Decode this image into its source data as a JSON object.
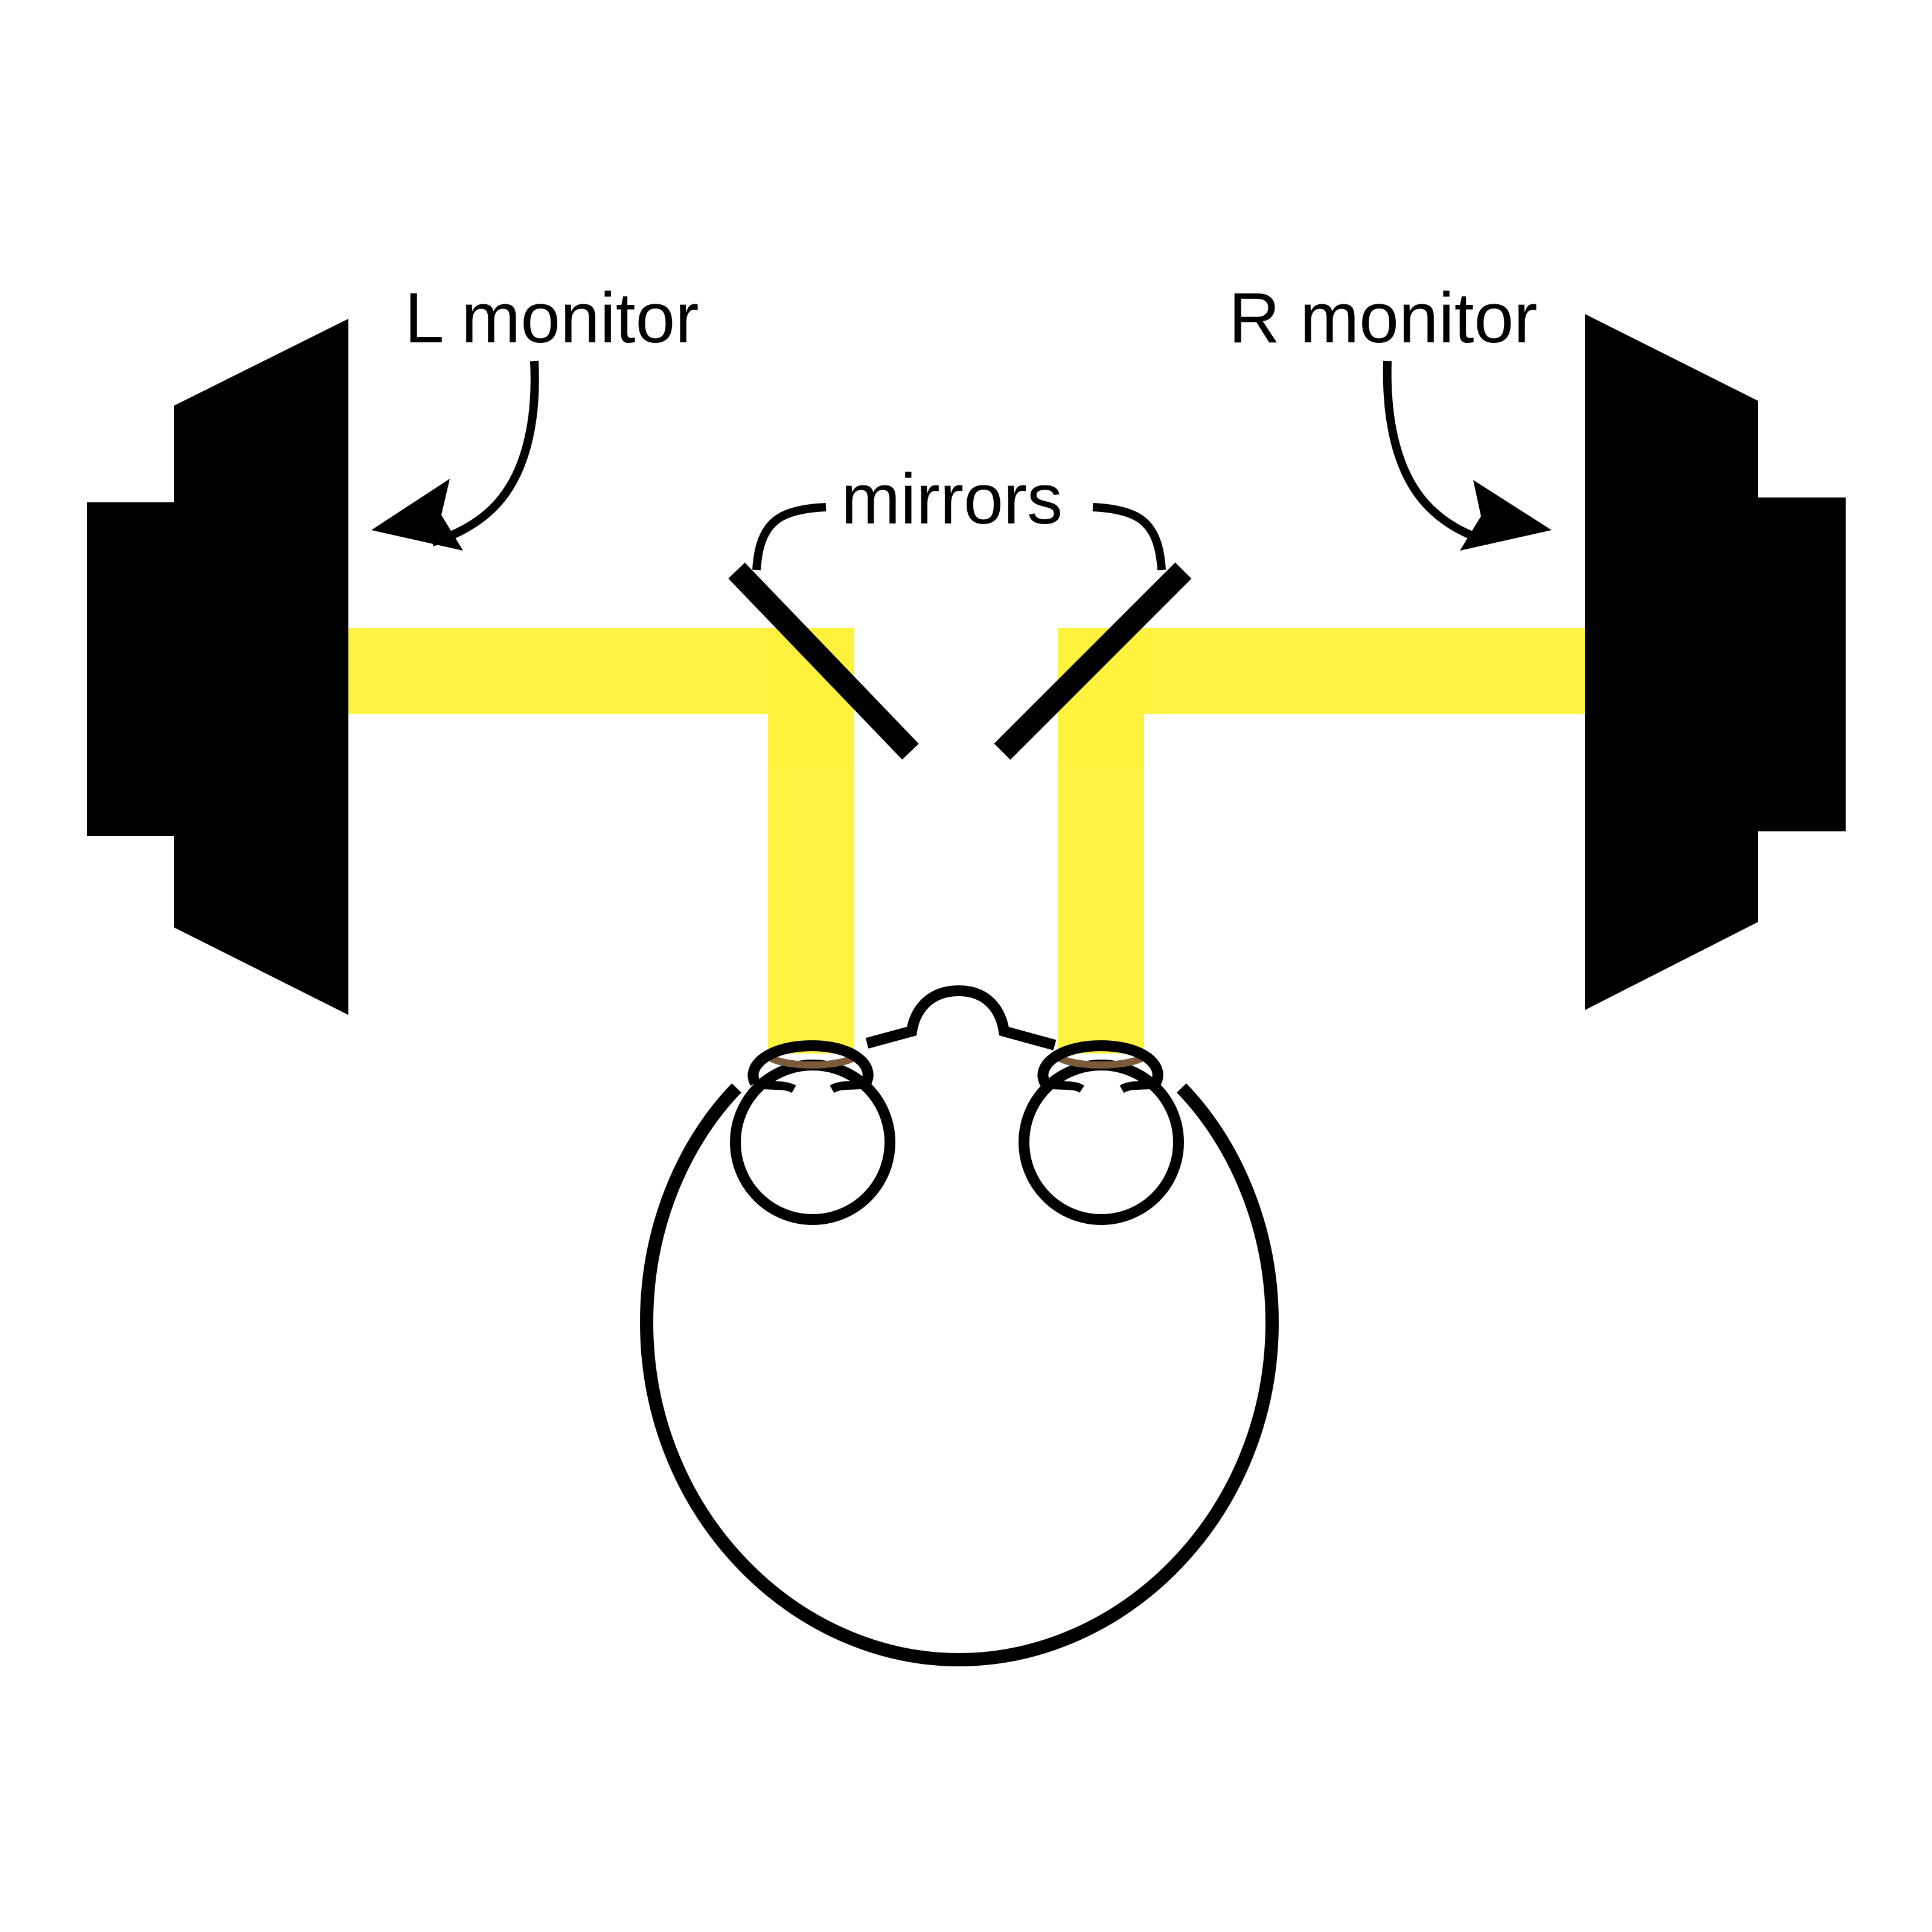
{
  "labels": {
    "left_monitor": "L monitor",
    "right_monitor": "R monitor",
    "mirrors": "mirrors"
  },
  "colors": {
    "ink": "#000000",
    "light_beam": "#ffee00",
    "iris": "#7a5a3a",
    "background": "#ffffff"
  }
}
